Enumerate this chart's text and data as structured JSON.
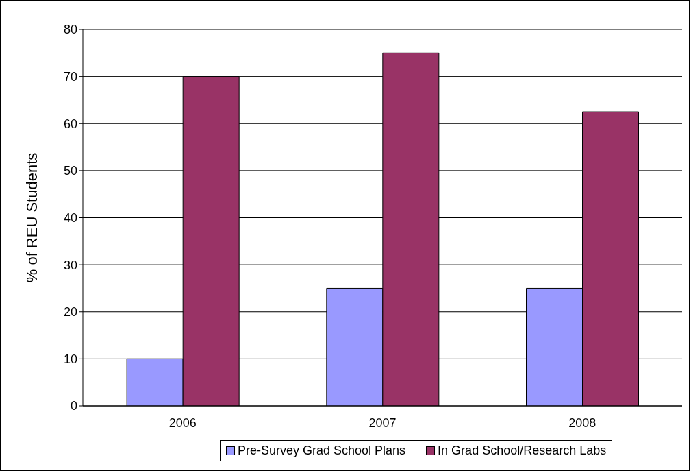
{
  "chart_data": {
    "type": "bar",
    "ylabel": "% of REU Students",
    "categories": [
      "2006",
      "2007",
      "2008"
    ],
    "series": [
      {
        "name": "Pre-Survey Grad School Plans",
        "color": "#9999ff",
        "values": [
          10,
          25,
          25
        ]
      },
      {
        "name": "In Grad School/Research Labs",
        "color": "#993366",
        "values": [
          70,
          75,
          62.5
        ]
      }
    ],
    "ylim": [
      0,
      80
    ],
    "yticks": [
      0,
      10,
      20,
      30,
      40,
      50,
      60,
      70,
      80
    ],
    "grid": "y",
    "legend": "bottom"
  }
}
